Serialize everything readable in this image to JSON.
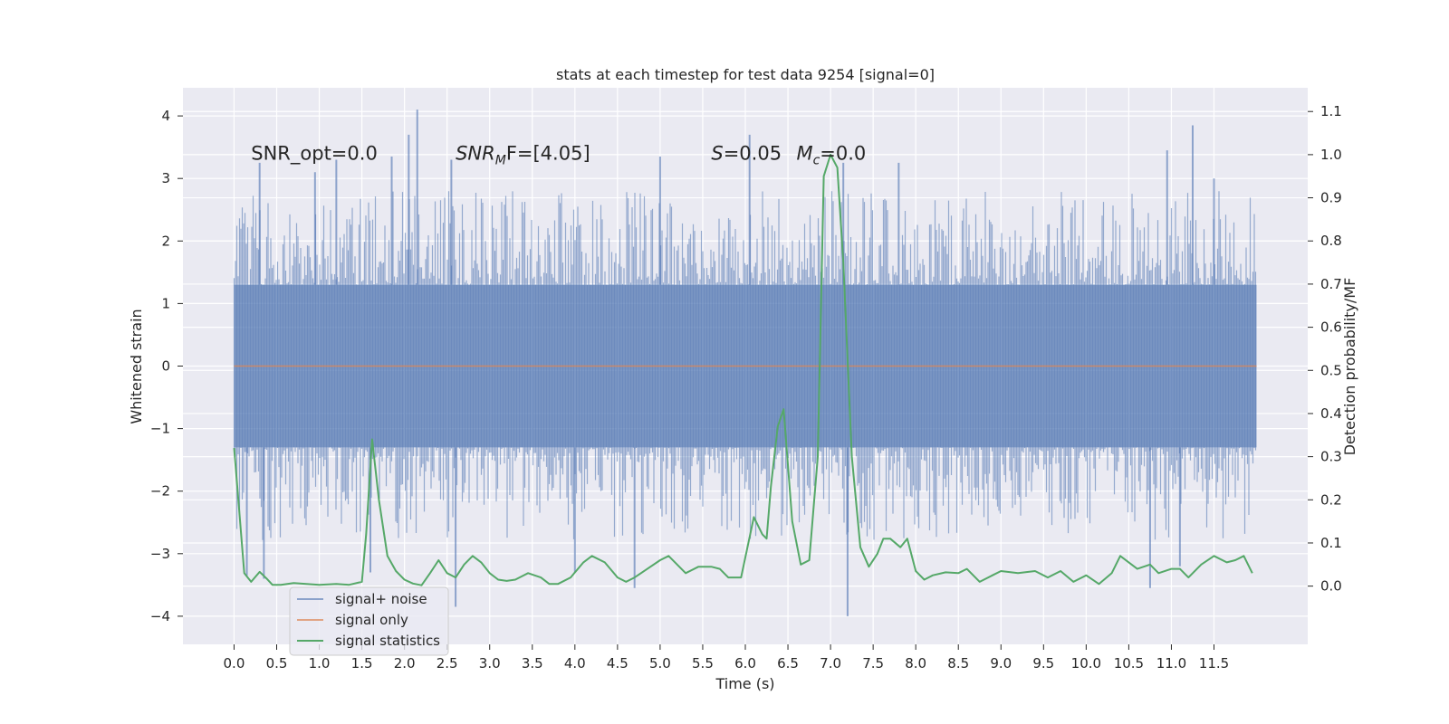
{
  "chart_data": {
    "type": "line",
    "title": "stats at each timestep for test data 9254 [signal=0]",
    "xlabel": "Time (s)",
    "ylabel_left": "Whitened strain",
    "ylabel_right": "Detection probability/MF",
    "xlim": [
      -0.6,
      12.6
    ],
    "ylim_left": [
      -4.45,
      4.45
    ],
    "ylim_right": [
      -0.135,
      1.155
    ],
    "x_ticks": [
      0.0,
      0.5,
      1.0,
      1.5,
      2.0,
      2.5,
      3.0,
      3.5,
      4.0,
      4.5,
      5.0,
      5.5,
      6.0,
      6.5,
      7.0,
      7.5,
      8.0,
      8.5,
      9.0,
      9.5,
      10.0,
      10.5,
      11.0,
      11.5
    ],
    "x_tick_labels": [
      "0.0",
      "0.5",
      "1.0",
      "1.5",
      "2.0",
      "2.5",
      "3.0",
      "3.5",
      "4.0",
      "4.5",
      "5.0",
      "5.5",
      "6.0",
      "6.5",
      "7.0",
      "7.5",
      "8.0",
      "8.5",
      "9.0",
      "9.5",
      "10.0",
      "10.5",
      "11.0",
      "11.5"
    ],
    "y_left_ticks": [
      -4,
      -3,
      -2,
      -1,
      0,
      1,
      2,
      3,
      4
    ],
    "y_left_tick_labels": [
      "−4",
      "−3",
      "−2",
      "−1",
      "0",
      "1",
      "2",
      "3",
      "4"
    ],
    "y_right_ticks": [
      0.0,
      0.1,
      0.2,
      0.3,
      0.4,
      0.5,
      0.6,
      0.7,
      0.8,
      0.9,
      1.0,
      1.1
    ],
    "y_right_tick_labels": [
      "0.0",
      "0.1",
      "0.2",
      "0.3",
      "0.4",
      "0.5",
      "0.6",
      "0.7",
      "0.8",
      "0.9",
      "1.0",
      "1.1"
    ],
    "grid": true,
    "annotations": [
      {
        "text": "SNR_opt=0.0",
        "x": 0.2,
        "y": 3.3
      },
      {
        "text": "SNR",
        "sub": "M",
        "rest": "F=[4.05]",
        "x": 2.6,
        "y": 3.3
      },
      {
        "text": "S",
        "rest": "=0.05",
        "x": 5.6,
        "y": 3.3
      },
      {
        "text": "M",
        "sub": "c",
        "rest": "=0.0",
        "x": 6.6,
        "y": 3.3
      }
    ],
    "legend_placement": "lower-left",
    "series": [
      {
        "name": "signal+ noise",
        "axis": "left",
        "color": "#4c72b0",
        "style": "dense-noise",
        "x_range": [
          0.0,
          12.0
        ],
        "band": [
          -1.3,
          1.3
        ],
        "spike_peaks": [
          {
            "x": 0.3,
            "y": 3.25
          },
          {
            "x": 0.95,
            "y": 3.1
          },
          {
            "x": 1.2,
            "y": 3.3
          },
          {
            "x": 1.85,
            "y": 3.35
          },
          {
            "x": 2.05,
            "y": 3.7
          },
          {
            "x": 2.15,
            "y": 4.1
          },
          {
            "x": 2.55,
            "y": 3.3
          },
          {
            "x": 5.0,
            "y": 3.35
          },
          {
            "x": 6.05,
            "y": 3.7
          },
          {
            "x": 7.15,
            "y": 3.25
          },
          {
            "x": 7.8,
            "y": 3.25
          },
          {
            "x": 10.95,
            "y": 3.45
          },
          {
            "x": 11.25,
            "y": 3.85
          },
          {
            "x": 11.5,
            "y": 3.0
          },
          {
            "x": 0.15,
            "y": -3.35
          },
          {
            "x": 0.35,
            "y": -3.4
          },
          {
            "x": 1.6,
            "y": -3.3
          },
          {
            "x": 2.6,
            "y": -3.85
          },
          {
            "x": 4.0,
            "y": -3.3
          },
          {
            "x": 4.7,
            "y": -3.55
          },
          {
            "x": 7.2,
            "y": -4.0
          },
          {
            "x": 10.75,
            "y": -3.55
          },
          {
            "x": 11.1,
            "y": -3.2
          }
        ]
      },
      {
        "name": "signal only",
        "axis": "left",
        "color": "#dd8452",
        "x": [
          0.0,
          12.0
        ],
        "y": [
          0.0,
          0.0
        ]
      },
      {
        "name": "signal statistics",
        "axis": "right",
        "color": "#55a868",
        "x": [
          0.0,
          0.05,
          0.12,
          0.2,
          0.3,
          0.38,
          0.45,
          0.55,
          0.7,
          0.85,
          1.0,
          1.2,
          1.35,
          1.5,
          1.55,
          1.62,
          1.7,
          1.8,
          1.9,
          2.0,
          2.1,
          2.2,
          2.3,
          2.4,
          2.5,
          2.6,
          2.7,
          2.8,
          2.9,
          3.0,
          3.1,
          3.2,
          3.3,
          3.45,
          3.6,
          3.7,
          3.8,
          3.95,
          4.1,
          4.2,
          4.35,
          4.5,
          4.6,
          4.7,
          4.85,
          5.0,
          5.1,
          5.2,
          5.3,
          5.45,
          5.6,
          5.7,
          5.8,
          5.95,
          6.1,
          6.2,
          6.25,
          6.3,
          6.38,
          6.45,
          6.55,
          6.65,
          6.75,
          6.85,
          6.92,
          7.0,
          7.08,
          7.15,
          7.25,
          7.35,
          7.45,
          7.55,
          7.62,
          7.7,
          7.82,
          7.9,
          8.0,
          8.1,
          8.2,
          8.35,
          8.5,
          8.6,
          8.75,
          8.9,
          9.0,
          9.2,
          9.4,
          9.55,
          9.7,
          9.85,
          10.0,
          10.15,
          10.3,
          10.4,
          10.5,
          10.6,
          10.75,
          10.85,
          11.0,
          11.1,
          11.2,
          11.35,
          11.5,
          11.65,
          11.75,
          11.85,
          11.95
        ],
        "y": [
          0.32,
          0.2,
          0.03,
          0.01,
          0.033,
          0.018,
          0.003,
          0.003,
          0.007,
          0.005,
          0.003,
          0.005,
          0.003,
          0.01,
          0.12,
          0.34,
          0.2,
          0.07,
          0.035,
          0.015,
          0.006,
          0.002,
          0.03,
          0.06,
          0.03,
          0.02,
          0.05,
          0.07,
          0.055,
          0.03,
          0.015,
          0.012,
          0.015,
          0.03,
          0.02,
          0.005,
          0.005,
          0.02,
          0.055,
          0.07,
          0.055,
          0.02,
          0.01,
          0.02,
          0.04,
          0.06,
          0.07,
          0.05,
          0.03,
          0.045,
          0.045,
          0.04,
          0.02,
          0.02,
          0.16,
          0.12,
          0.11,
          0.23,
          0.37,
          0.41,
          0.15,
          0.05,
          0.06,
          0.3,
          0.95,
          1.0,
          0.97,
          0.75,
          0.3,
          0.09,
          0.045,
          0.075,
          0.11,
          0.11,
          0.09,
          0.11,
          0.035,
          0.015,
          0.025,
          0.032,
          0.03,
          0.04,
          0.01,
          0.025,
          0.035,
          0.03,
          0.035,
          0.02,
          0.035,
          0.01,
          0.025,
          0.005,
          0.03,
          0.07,
          0.055,
          0.04,
          0.05,
          0.03,
          0.04,
          0.04,
          0.02,
          0.05,
          0.07,
          0.055,
          0.06,
          0.07,
          0.03
        ]
      }
    ]
  }
}
